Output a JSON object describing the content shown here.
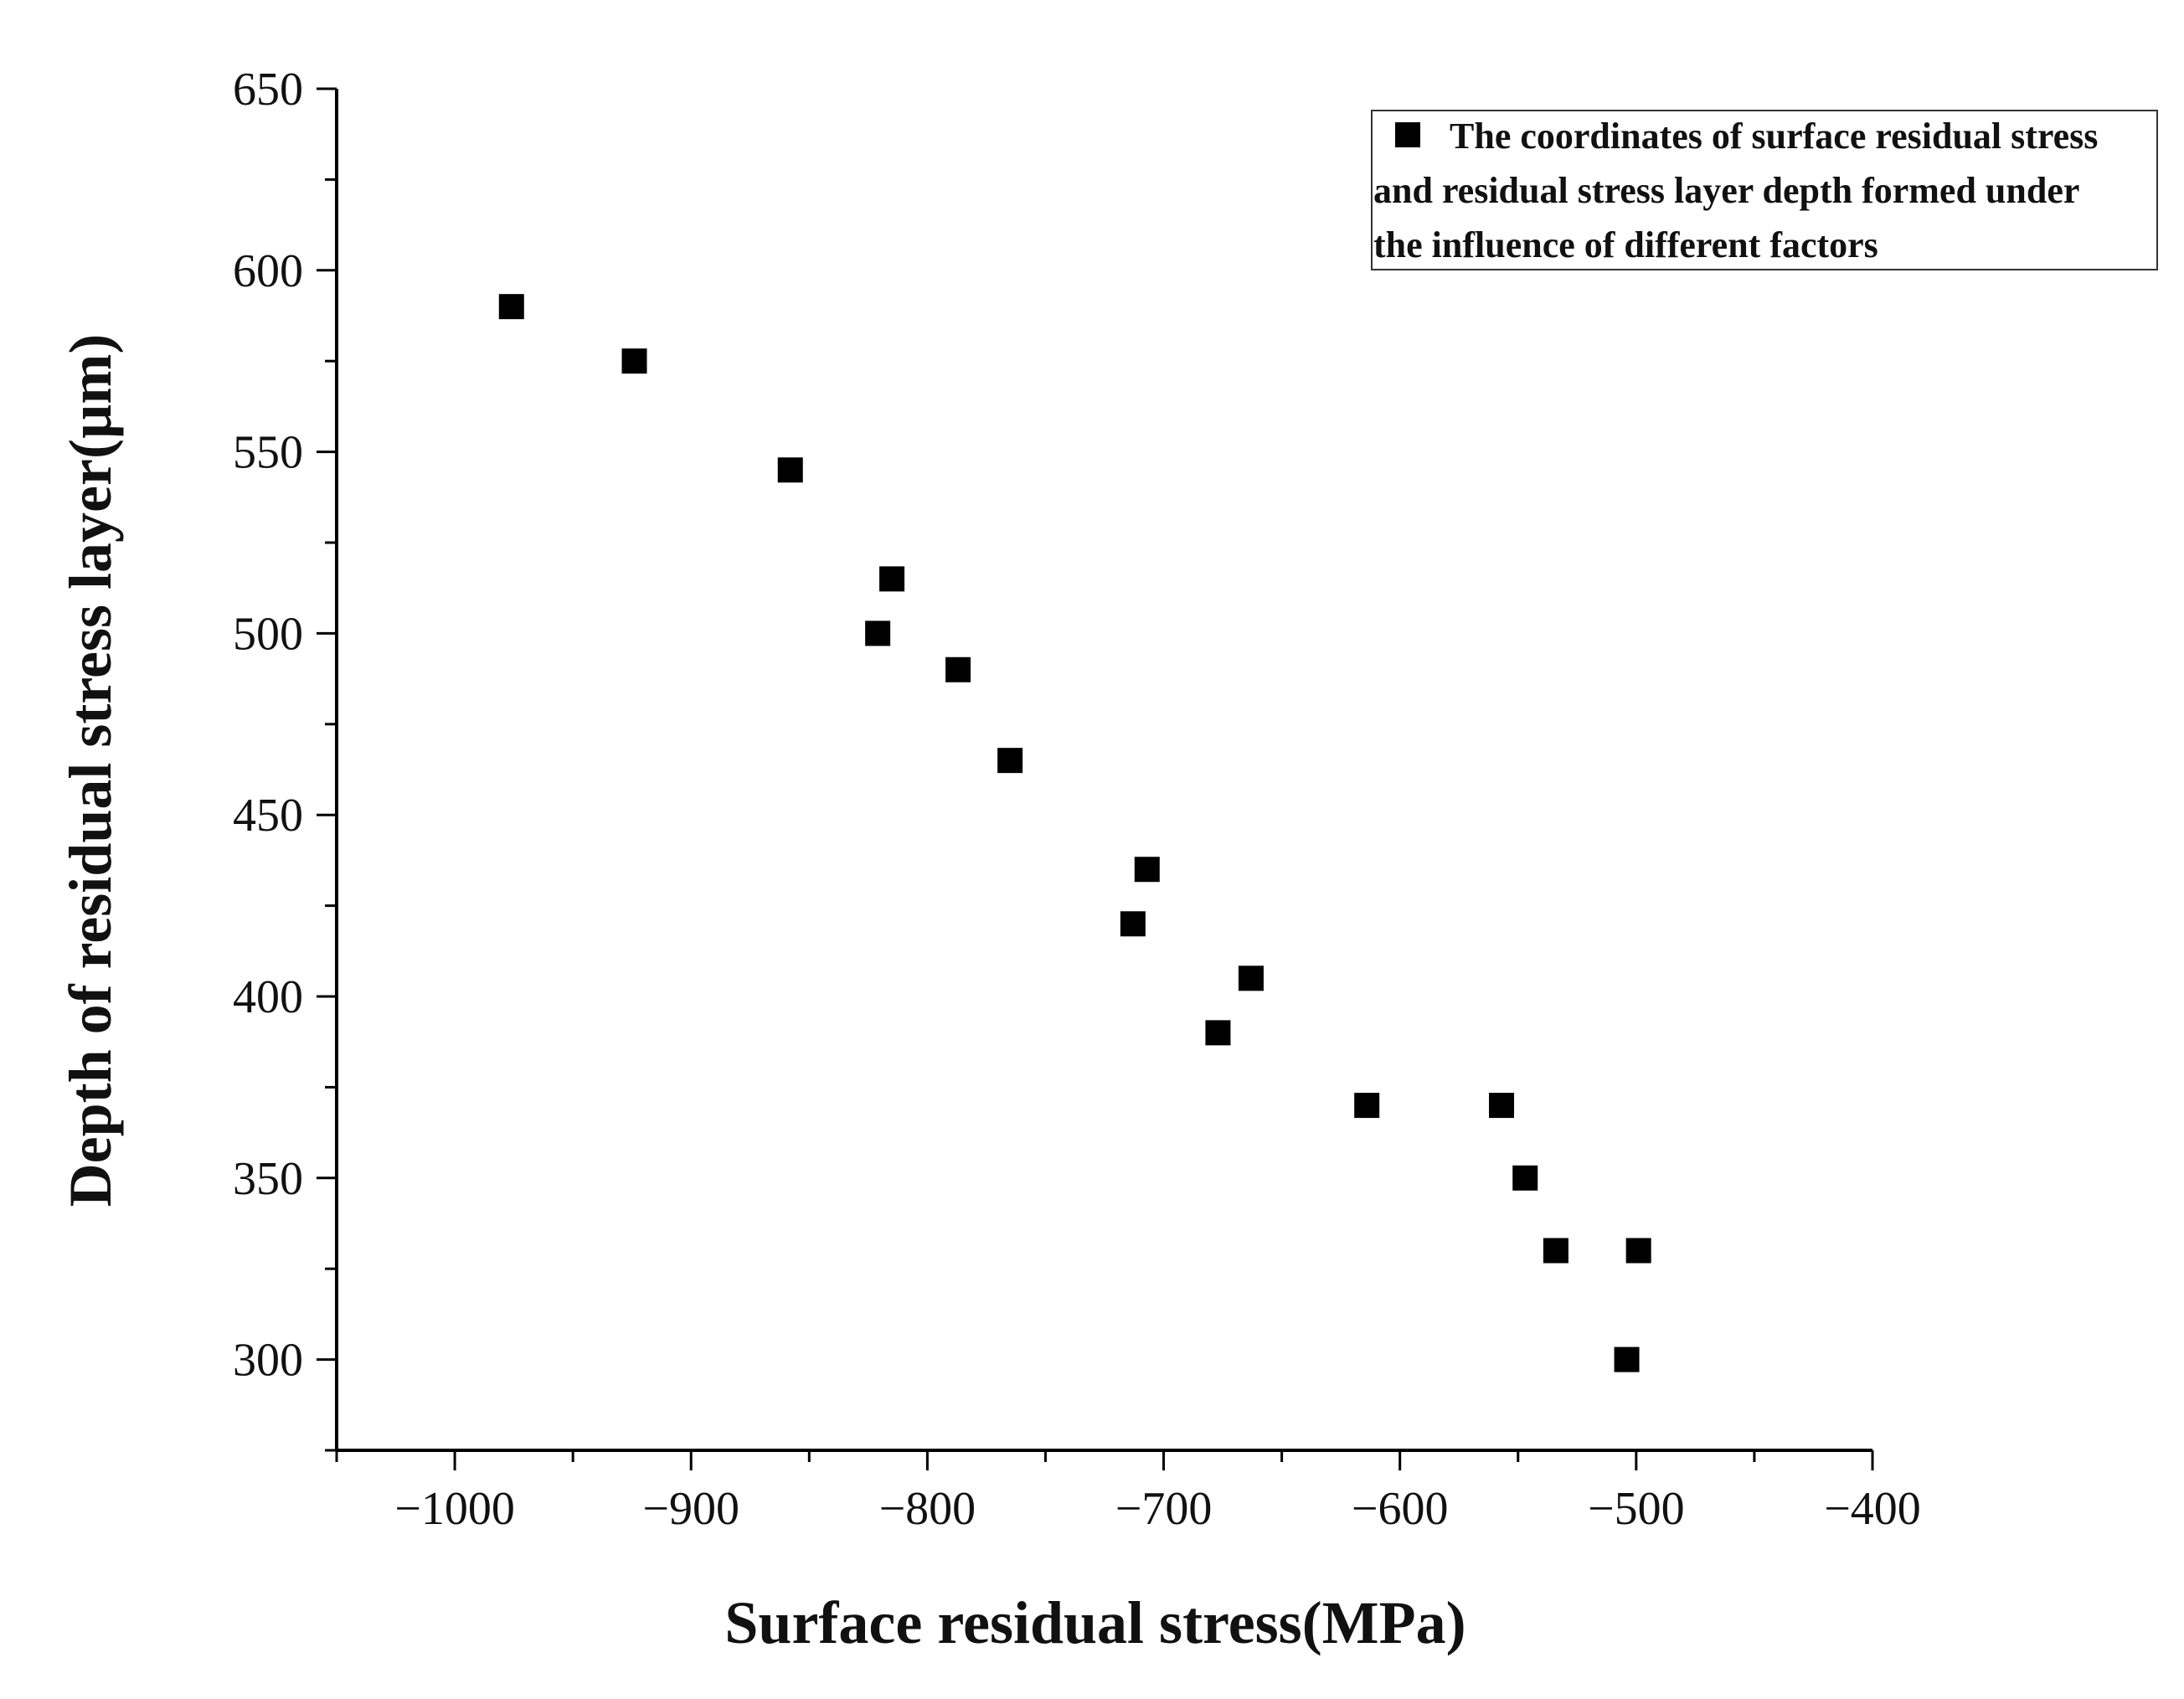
{
  "chart_data": {
    "type": "scatter",
    "title": "",
    "xlabel": "Surface residual stress(MPa)",
    "ylabel": "Depth of residual stress layer(µm)",
    "xlim": [
      -1050,
      -400
    ],
    "ylim": [
      275,
      650
    ],
    "x_ticks": [
      -1000,
      -900,
      -800,
      -700,
      -600,
      -500,
      -400
    ],
    "x_tick_labels": [
      "−1000",
      "−900",
      "−800",
      "−700",
      "−600",
      "−500",
      "−400"
    ],
    "y_ticks": [
      300,
      350,
      400,
      450,
      500,
      550,
      600,
      650
    ],
    "y_tick_labels": [
      "300",
      "350",
      "400",
      "450",
      "500",
      "550",
      "600",
      "650"
    ],
    "grid": false,
    "legend": {
      "placement": "top-right",
      "lines": [
        "The coordinates of surface residual stress",
        "and residual stress layer depth formed under",
        "the influence of different factors"
      ]
    },
    "marker_color": "#000000",
    "series": [
      {
        "name": "The coordinates of surface residual stress and residual stress layer depth formed under the influence of different factors",
        "marker": "square",
        "points": [
          {
            "x": -976,
            "y": 590
          },
          {
            "x": -924,
            "y": 575
          },
          {
            "x": -858,
            "y": 545
          },
          {
            "x": -815,
            "y": 515
          },
          {
            "x": -821,
            "y": 500
          },
          {
            "x": -787,
            "y": 490
          },
          {
            "x": -765,
            "y": 465
          },
          {
            "x": -707,
            "y": 435
          },
          {
            "x": -713,
            "y": 420
          },
          {
            "x": -663,
            "y": 405
          },
          {
            "x": -677,
            "y": 390
          },
          {
            "x": -614,
            "y": 370
          },
          {
            "x": -557,
            "y": 370
          },
          {
            "x": -547,
            "y": 350
          },
          {
            "x": -534,
            "y": 330
          },
          {
            "x": -499,
            "y": 330
          },
          {
            "x": -504,
            "y": 300
          }
        ]
      }
    ]
  }
}
